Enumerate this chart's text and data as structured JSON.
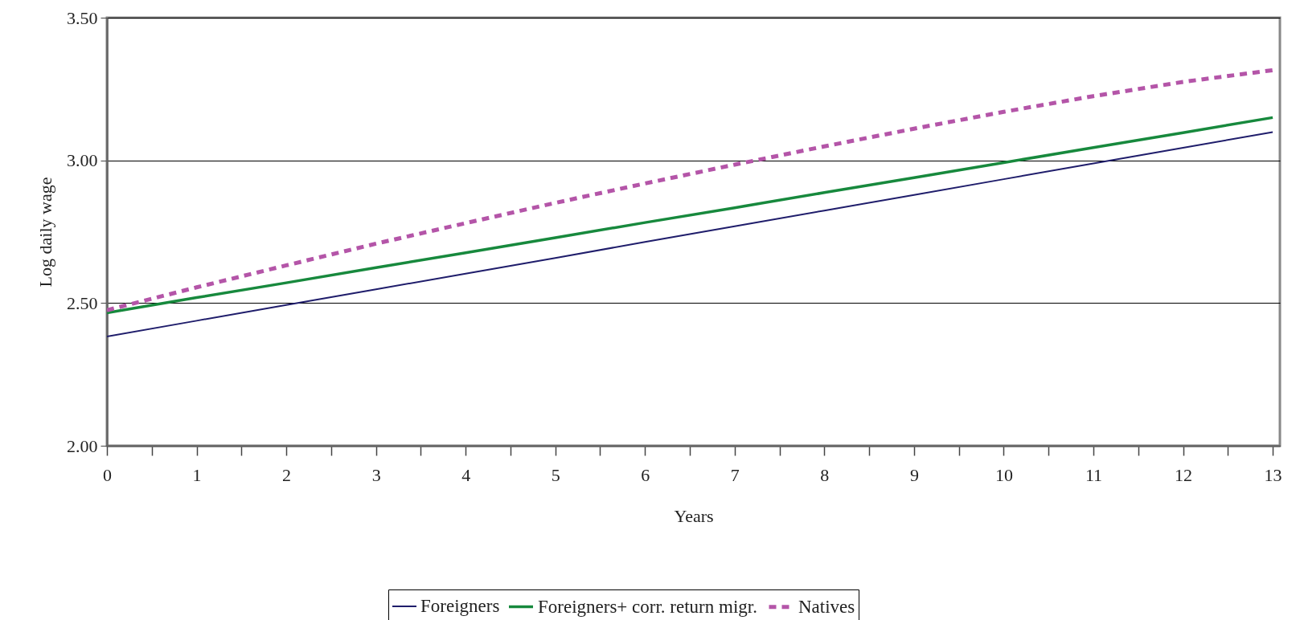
{
  "chart_data": {
    "type": "line",
    "xlabel": "Years",
    "ylabel": "Log daily wage",
    "x": [
      0,
      1,
      2,
      3,
      4,
      5,
      6,
      7,
      8,
      9,
      10,
      11,
      12,
      13
    ],
    "series": [
      {
        "name": "Foreigners",
        "color": "#1f1d6b",
        "line_style": "solid",
        "values": [
          2.383,
          2.438,
          2.493,
          2.548,
          2.603,
          2.658,
          2.714,
          2.769,
          2.824,
          2.879,
          2.934,
          2.989,
          3.044,
          3.099
        ]
      },
      {
        "name": "Foreigners+ corr. return migr.",
        "color": "#17893d",
        "line_style": "solid",
        "values": [
          2.466,
          2.519,
          2.571,
          2.624,
          2.676,
          2.729,
          2.782,
          2.834,
          2.887,
          2.939,
          2.992,
          3.045,
          3.097,
          3.15
        ]
      },
      {
        "name": "Natives",
        "color": "#b455a8",
        "line_style": "dashed",
        "values": [
          2.475,
          2.555,
          2.632,
          2.708,
          2.78,
          2.851,
          2.919,
          2.985,
          3.049,
          3.111,
          3.17,
          3.225,
          3.275,
          3.316
        ]
      }
    ],
    "xlim": [
      0,
      13.08
    ],
    "xticks": [
      0,
      {
        "value": 0.5,
        "label": null
      },
      1,
      {
        "value": 1.5,
        "label": null
      },
      2,
      {
        "value": 2.5,
        "label": null
      },
      3,
      {
        "value": 3.5,
        "label": null
      },
      4,
      {
        "value": 4.5,
        "label": null
      },
      5,
      {
        "value": 5.5,
        "label": null
      },
      6,
      {
        "value": 6.5,
        "label": null
      },
      7,
      {
        "value": 7.5,
        "label": null
      },
      8,
      {
        "value": 8.5,
        "label": null
      },
      9,
      {
        "value": 9.5,
        "label": null
      },
      10,
      {
        "value": 10.5,
        "label": null
      },
      11,
      {
        "value": 11.5,
        "label": null
      },
      12,
      {
        "value": 12.5,
        "label": null
      },
      13
    ],
    "ylim": [
      2,
      3.5
    ],
    "yticks": [
      {
        "value": 2,
        "label": "2.00"
      },
      {
        "value": 2.5,
        "label": "2.50"
      },
      {
        "value": 3,
        "label": "3.00"
      },
      {
        "value": 3.5,
        "label": "3.50"
      }
    ],
    "grid": "y",
    "legend": "bottom",
    "marker": "none"
  }
}
